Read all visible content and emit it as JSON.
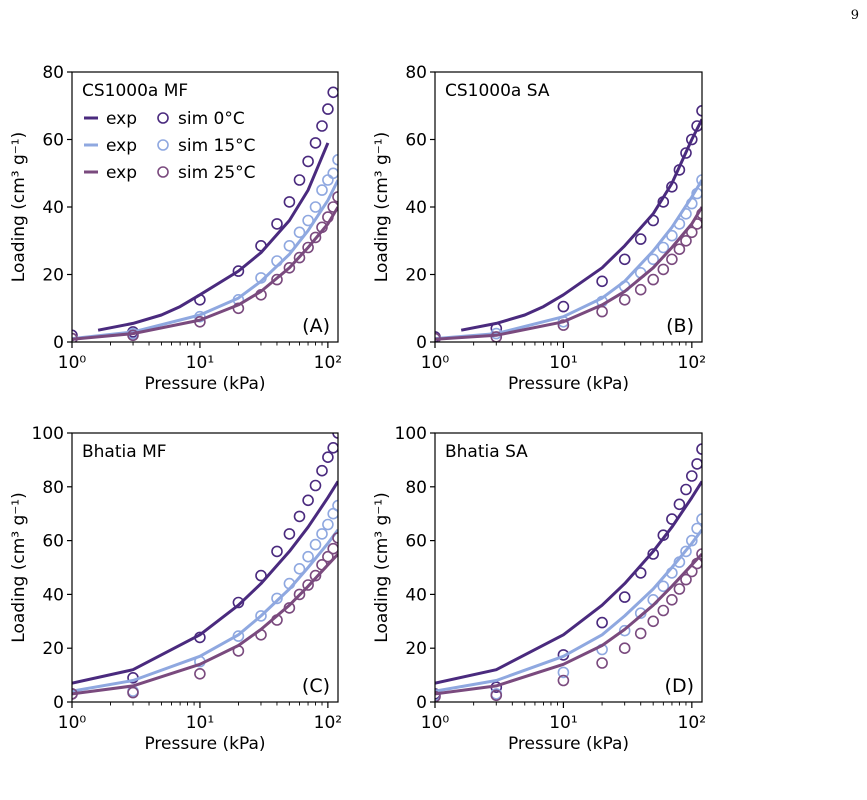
{
  "page_number": "9",
  "colors": {
    "c0": "#4a2a7e",
    "c15": "#8fa8e0",
    "c25": "#7a4a7e"
  },
  "chart_data": [
    {
      "type": "line",
      "panel_label": "(A)",
      "title": "CS1000a MF",
      "xlabel": "Pressure (kPa)",
      "ylabel": "Loading (cm³ g⁻¹)",
      "xscale": "log",
      "xlim": [
        1,
        120
      ],
      "ylim": [
        0,
        80
      ],
      "yticks": [
        0,
        20,
        40,
        60,
        80
      ],
      "xticks": [
        "10⁰",
        "10¹",
        "10²"
      ],
      "legend": {
        "placement": "top-left",
        "entries": [
          {
            "line": "exp",
            "marker": "sim 0°C"
          },
          {
            "line": "exp",
            "marker": "sim 15°C"
          },
          {
            "line": "exp",
            "marker": "sim 25°C"
          }
        ]
      },
      "series": [
        {
          "temp": "0°C",
          "color_key": "c0",
          "exp": {
            "x": [
              1.6,
              3,
              5,
              7,
              10,
              20,
              30,
              50,
              70,
              100
            ],
            "y": [
              3.5,
              5.5,
              8,
              10.5,
              14,
              21,
              26.5,
              36,
              45,
              59
            ]
          },
          "sim": {
            "x": [
              1,
              3,
              10,
              20,
              30,
              40,
              50,
              60,
              70,
              80,
              90,
              100,
              110
            ],
            "y": [
              2,
              3,
              12.5,
              21,
              28.5,
              35,
              41.5,
              48,
              53.5,
              59,
              64,
              69,
              74
            ]
          }
        },
        {
          "temp": "15°C",
          "color_key": "c15",
          "exp": {
            "x": [
              1,
              3,
              10,
              20,
              30,
              50,
              70,
              100,
              120
            ],
            "y": [
              1,
              3,
              8,
              13,
              18,
              26,
              33,
              42,
              48
            ]
          },
          "sim": {
            "x": [
              1,
              3,
              10,
              20,
              30,
              40,
              50,
              60,
              70,
              80,
              90,
              100,
              110,
              120
            ],
            "y": [
              1,
              2.5,
              7.5,
              12.5,
              19,
              24,
              28.5,
              32.5,
              36,
              40,
              45,
              48,
              50,
              54
            ]
          }
        },
        {
          "temp": "25°C",
          "color_key": "c25",
          "exp": {
            "x": [
              1,
              3,
              10,
              20,
              30,
              50,
              70,
              100,
              120
            ],
            "y": [
              0.8,
              2.5,
              6.5,
              11,
              15,
              22,
              28,
              35,
              40
            ]
          },
          "sim": {
            "x": [
              1,
              3,
              10,
              20,
              30,
              40,
              50,
              60,
              70,
              80,
              90,
              100,
              110,
              120
            ],
            "y": [
              1,
              2,
              6,
              10,
              14,
              18.5,
              22,
              25,
              28,
              31,
              34,
              37,
              40,
              43
            ]
          }
        }
      ]
    },
    {
      "type": "line",
      "panel_label": "(B)",
      "title": "CS1000a SA",
      "xlabel": "Pressure (kPa)",
      "ylabel": "Loading (cm³ g⁻¹)",
      "xscale": "log",
      "xlim": [
        1,
        120
      ],
      "ylim": [
        0,
        80
      ],
      "yticks": [
        0,
        20,
        40,
        60,
        80
      ],
      "xticks": [
        "10⁰",
        "10¹",
        "10²"
      ],
      "series": [
        {
          "temp": "0°C",
          "color_key": "c0",
          "exp": {
            "x": [
              1.6,
              3,
              5,
              7,
              10,
              20,
              30,
              50,
              70,
              100,
              120
            ],
            "y": [
              3.5,
              5.5,
              8,
              10.5,
              14,
              22,
              28.5,
              38,
              47,
              60,
              66
            ]
          },
          "sim": {
            "x": [
              1,
              3,
              10,
              20,
              30,
              40,
              50,
              60,
              70,
              80,
              90,
              100,
              110,
              120
            ],
            "y": [
              1.5,
              4,
              10.5,
              18,
              24.5,
              30.5,
              36,
              41.5,
              46,
              51,
              56,
              60,
              64,
              68.5
            ]
          }
        },
        {
          "temp": "15°C",
          "color_key": "c15",
          "exp": {
            "x": [
              1,
              3,
              10,
              20,
              30,
              50,
              70,
              100,
              120
            ],
            "y": [
              1,
              2.5,
              7.5,
              13,
              18,
              27,
              34,
              43,
              48
            ]
          },
          "sim": {
            "x": [
              1,
              3,
              10,
              20,
              30,
              40,
              50,
              60,
              70,
              80,
              90,
              100,
              110,
              120
            ],
            "y": [
              1,
              2.5,
              6,
              12,
              16.5,
              20.5,
              24.5,
              28,
              31.5,
              35,
              38,
              41,
              44,
              48
            ]
          }
        },
        {
          "temp": "25°C",
          "color_key": "c25",
          "exp": {
            "x": [
              1,
              3,
              10,
              20,
              30,
              50,
              70,
              100,
              120
            ],
            "y": [
              0.8,
              2,
              6,
              11,
              15,
              22,
              28,
              35,
              40
            ]
          },
          "sim": {
            "x": [
              1,
              3,
              10,
              20,
              30,
              40,
              50,
              60,
              70,
              80,
              90,
              100,
              110,
              120
            ],
            "y": [
              1,
              1.5,
              5,
              9,
              12.5,
              15.5,
              18.5,
              21.5,
              24.5,
              27.5,
              30,
              32.5,
              35,
              38
            ]
          }
        }
      ]
    },
    {
      "type": "line",
      "panel_label": "(C)",
      "title": "Bhatia MF",
      "xlabel": "Pressure (kPa)",
      "ylabel": "Loading (cm³ g⁻¹)",
      "xscale": "log",
      "xlim": [
        1,
        120
      ],
      "ylim": [
        0,
        100
      ],
      "yticks": [
        0,
        20,
        40,
        60,
        80,
        100
      ],
      "xticks": [
        "10⁰",
        "10¹",
        "10²"
      ],
      "series": [
        {
          "temp": "0°C",
          "color_key": "c0",
          "exp": {
            "x": [
              1,
              3,
              10,
              20,
              30,
              50,
              70,
              100,
              120
            ],
            "y": [
              7,
              12,
              25,
              36,
              44,
              56,
              65,
              76,
              82
            ]
          },
          "sim": {
            "x": [
              1,
              3,
              10,
              20,
              30,
              40,
              50,
              60,
              70,
              80,
              90,
              100,
              110,
              120
            ],
            "y": [
              3,
              9,
              24,
              37,
              47,
              56,
              62.5,
              69,
              75,
              80.5,
              86,
              91,
              94.5,
              100
            ]
          }
        },
        {
          "temp": "15°C",
          "color_key": "c15",
          "exp": {
            "x": [
              1,
              3,
              10,
              20,
              30,
              50,
              70,
              100,
              120
            ],
            "y": [
              4,
              8,
              17,
              25,
              32,
              42,
              50,
              59,
              64
            ]
          },
          "sim": {
            "x": [
              1,
              3,
              10,
              20,
              30,
              40,
              50,
              60,
              70,
              80,
              90,
              100,
              110,
              120
            ],
            "y": [
              3,
              4,
              15,
              24.5,
              32,
              38.5,
              44,
              49.5,
              54,
              58.5,
              62.5,
              66,
              70,
              73
            ]
          }
        },
        {
          "temp": "25°C",
          "color_key": "c25",
          "exp": {
            "x": [
              1,
              3,
              10,
              20,
              30,
              50,
              70,
              100,
              120
            ],
            "y": [
              3,
              6,
              14,
              21,
              27,
              36,
              43,
              51,
              55
            ]
          },
          "sim": {
            "x": [
              1,
              3,
              10,
              20,
              30,
              40,
              50,
              60,
              70,
              80,
              90,
              100,
              110,
              120
            ],
            "y": [
              3,
              3.5,
              10.5,
              19,
              25,
              30.5,
              35,
              40,
              43.5,
              47,
              51,
              54,
              57,
              61
            ]
          }
        }
      ]
    },
    {
      "type": "line",
      "panel_label": "(D)",
      "title": "Bhatia SA",
      "xlabel": "Pressure (kPa)",
      "ylabel": "Loading (cm³ g⁻¹)",
      "xscale": "log",
      "xlim": [
        1,
        120
      ],
      "ylim": [
        0,
        100
      ],
      "yticks": [
        0,
        20,
        40,
        60,
        80,
        100
      ],
      "xticks": [
        "10⁰",
        "10¹",
        "10²"
      ],
      "series": [
        {
          "temp": "0°C",
          "color_key": "c0",
          "exp": {
            "x": [
              1,
              3,
              10,
              20,
              30,
              50,
              70,
              100,
              120
            ],
            "y": [
              7,
              12,
              25,
              36,
              44,
              56,
              65,
              76,
              82
            ]
          },
          "sim": {
            "x": [
              1,
              3,
              10,
              20,
              30,
              40,
              50,
              60,
              70,
              80,
              90,
              100,
              110,
              120
            ],
            "y": [
              3,
              5.5,
              17.5,
              29.5,
              39,
              48,
              55,
              62,
              68,
              73.5,
              79,
              84,
              88.5,
              94
            ]
          }
        },
        {
          "temp": "15°C",
          "color_key": "c15",
          "exp": {
            "x": [
              1,
              3,
              10,
              20,
              30,
              50,
              70,
              100,
              120
            ],
            "y": [
              4,
              8,
              17,
              25,
              32,
              42,
              50,
              59,
              64
            ]
          },
          "sim": {
            "x": [
              1,
              3,
              10,
              20,
              30,
              40,
              50,
              60,
              70,
              80,
              90,
              100,
              110,
              120
            ],
            "y": [
              2.5,
              3,
              11,
              19.5,
              26.5,
              33,
              38,
              43,
              48,
              52,
              56,
              60,
              64.5,
              68
            ]
          }
        },
        {
          "temp": "25°C",
          "color_key": "c25",
          "exp": {
            "x": [
              1,
              3,
              10,
              20,
              30,
              50,
              70,
              100,
              120
            ],
            "y": [
              3,
              6,
              14,
              21,
              27,
              36,
              43,
              51,
              55
            ]
          },
          "sim": {
            "x": [
              1,
              3,
              10,
              20,
              30,
              40,
              50,
              60,
              70,
              80,
              90,
              100,
              110,
              120
            ],
            "y": [
              2,
              2.5,
              8,
              14.5,
              20,
              25.5,
              30,
              34,
              38,
              42,
              45.5,
              48.5,
              51.5,
              55
            ]
          }
        }
      ]
    }
  ]
}
